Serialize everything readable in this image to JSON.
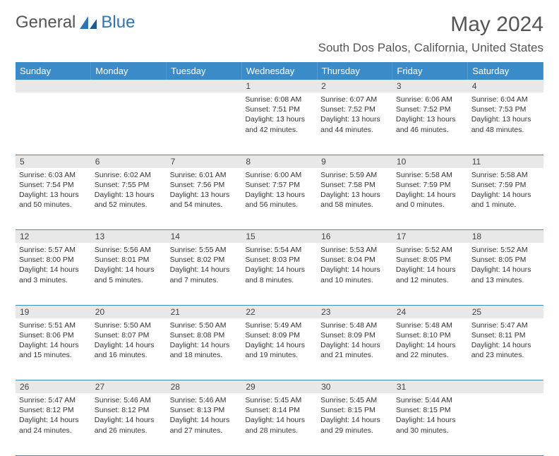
{
  "logo": {
    "word1": "General",
    "word2": "Blue"
  },
  "title": "May 2024",
  "location": "South Dos Palos, California, United States",
  "colors": {
    "header_bg": "#3b8bc9",
    "header_text": "#ffffff",
    "daynum_bg": "#e8e8e8",
    "row_border": "#3b8bc9",
    "text": "#333333",
    "logo_gray": "#555555",
    "logo_blue": "#2e75b6"
  },
  "day_headers": [
    "Sunday",
    "Monday",
    "Tuesday",
    "Wednesday",
    "Thursday",
    "Friday",
    "Saturday"
  ],
  "weeks": [
    [
      {
        "n": "",
        "sr": "",
        "ss": "",
        "dl": ""
      },
      {
        "n": "",
        "sr": "",
        "ss": "",
        "dl": ""
      },
      {
        "n": "",
        "sr": "",
        "ss": "",
        "dl": ""
      },
      {
        "n": "1",
        "sr": "6:08 AM",
        "ss": "7:51 PM",
        "dl": "13 hours and 42 minutes."
      },
      {
        "n": "2",
        "sr": "6:07 AM",
        "ss": "7:52 PM",
        "dl": "13 hours and 44 minutes."
      },
      {
        "n": "3",
        "sr": "6:06 AM",
        "ss": "7:52 PM",
        "dl": "13 hours and 46 minutes."
      },
      {
        "n": "4",
        "sr": "6:04 AM",
        "ss": "7:53 PM",
        "dl": "13 hours and 48 minutes."
      }
    ],
    [
      {
        "n": "5",
        "sr": "6:03 AM",
        "ss": "7:54 PM",
        "dl": "13 hours and 50 minutes."
      },
      {
        "n": "6",
        "sr": "6:02 AM",
        "ss": "7:55 PM",
        "dl": "13 hours and 52 minutes."
      },
      {
        "n": "7",
        "sr": "6:01 AM",
        "ss": "7:56 PM",
        "dl": "13 hours and 54 minutes."
      },
      {
        "n": "8",
        "sr": "6:00 AM",
        "ss": "7:57 PM",
        "dl": "13 hours and 56 minutes."
      },
      {
        "n": "9",
        "sr": "5:59 AM",
        "ss": "7:58 PM",
        "dl": "13 hours and 58 minutes."
      },
      {
        "n": "10",
        "sr": "5:58 AM",
        "ss": "7:59 PM",
        "dl": "14 hours and 0 minutes."
      },
      {
        "n": "11",
        "sr": "5:58 AM",
        "ss": "7:59 PM",
        "dl": "14 hours and 1 minute."
      }
    ],
    [
      {
        "n": "12",
        "sr": "5:57 AM",
        "ss": "8:00 PM",
        "dl": "14 hours and 3 minutes."
      },
      {
        "n": "13",
        "sr": "5:56 AM",
        "ss": "8:01 PM",
        "dl": "14 hours and 5 minutes."
      },
      {
        "n": "14",
        "sr": "5:55 AM",
        "ss": "8:02 PM",
        "dl": "14 hours and 7 minutes."
      },
      {
        "n": "15",
        "sr": "5:54 AM",
        "ss": "8:03 PM",
        "dl": "14 hours and 8 minutes."
      },
      {
        "n": "16",
        "sr": "5:53 AM",
        "ss": "8:04 PM",
        "dl": "14 hours and 10 minutes."
      },
      {
        "n": "17",
        "sr": "5:52 AM",
        "ss": "8:05 PM",
        "dl": "14 hours and 12 minutes."
      },
      {
        "n": "18",
        "sr": "5:52 AM",
        "ss": "8:05 PM",
        "dl": "14 hours and 13 minutes."
      }
    ],
    [
      {
        "n": "19",
        "sr": "5:51 AM",
        "ss": "8:06 PM",
        "dl": "14 hours and 15 minutes."
      },
      {
        "n": "20",
        "sr": "5:50 AM",
        "ss": "8:07 PM",
        "dl": "14 hours and 16 minutes."
      },
      {
        "n": "21",
        "sr": "5:50 AM",
        "ss": "8:08 PM",
        "dl": "14 hours and 18 minutes."
      },
      {
        "n": "22",
        "sr": "5:49 AM",
        "ss": "8:09 PM",
        "dl": "14 hours and 19 minutes."
      },
      {
        "n": "23",
        "sr": "5:48 AM",
        "ss": "8:09 PM",
        "dl": "14 hours and 21 minutes."
      },
      {
        "n": "24",
        "sr": "5:48 AM",
        "ss": "8:10 PM",
        "dl": "14 hours and 22 minutes."
      },
      {
        "n": "25",
        "sr": "5:47 AM",
        "ss": "8:11 PM",
        "dl": "14 hours and 23 minutes."
      }
    ],
    [
      {
        "n": "26",
        "sr": "5:47 AM",
        "ss": "8:12 PM",
        "dl": "14 hours and 24 minutes."
      },
      {
        "n": "27",
        "sr": "5:46 AM",
        "ss": "8:12 PM",
        "dl": "14 hours and 26 minutes."
      },
      {
        "n": "28",
        "sr": "5:46 AM",
        "ss": "8:13 PM",
        "dl": "14 hours and 27 minutes."
      },
      {
        "n": "29",
        "sr": "5:45 AM",
        "ss": "8:14 PM",
        "dl": "14 hours and 28 minutes."
      },
      {
        "n": "30",
        "sr": "5:45 AM",
        "ss": "8:15 PM",
        "dl": "14 hours and 29 minutes."
      },
      {
        "n": "31",
        "sr": "5:44 AM",
        "ss": "8:15 PM",
        "dl": "14 hours and 30 minutes."
      },
      {
        "n": "",
        "sr": "",
        "ss": "",
        "dl": ""
      }
    ]
  ],
  "labels": {
    "sunrise": "Sunrise:",
    "sunset": "Sunset:",
    "daylight": "Daylight:"
  }
}
